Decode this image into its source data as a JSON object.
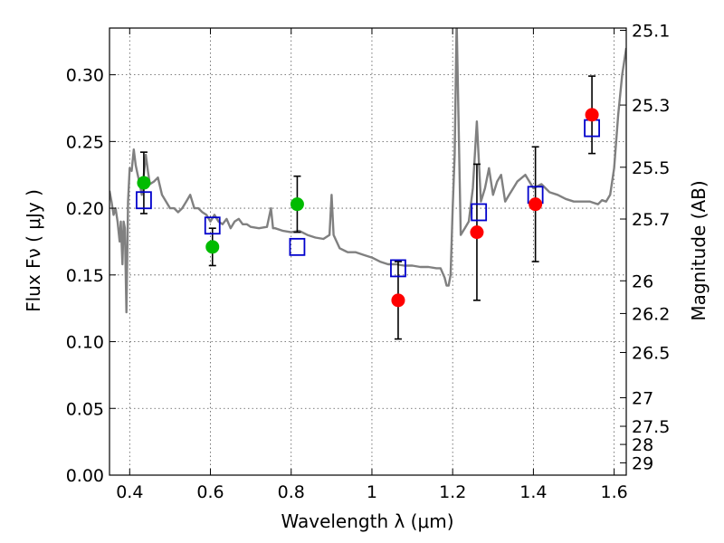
{
  "chart_data": {
    "type": "scatter",
    "xlabel": "Wavelength  λ (μm)",
    "ylabel": "Flux  Fν  ( μJy )",
    "ylabel_right": "Magnitude (AB)",
    "xlim": [
      0.35,
      1.63
    ],
    "ylim": [
      0.0,
      0.335
    ],
    "grid": true,
    "x_ticks": [
      0.4,
      0.6,
      0.8,
      1.0,
      1.2,
      1.4,
      1.6
    ],
    "x_tick_labels": [
      "0.4",
      "0.6",
      "0.8",
      "1",
      "1.2",
      "1.4",
      "1.6"
    ],
    "y_ticks": [
      0.0,
      0.05,
      0.1,
      0.15,
      0.2,
      0.25,
      0.3
    ],
    "y_tick_labels": [
      "0.00",
      "0.05",
      "0.10",
      "0.15",
      "0.20",
      "0.25",
      "0.30"
    ],
    "right_ticks": [
      {
        "label": "25.1",
        "flux": 0.3333
      },
      {
        "label": "25.3",
        "flux": 0.2773
      },
      {
        "label": "25.5",
        "flux": 0.2307
      },
      {
        "label": "25.7",
        "flux": 0.1919
      },
      {
        "label": "26",
        "flux": 0.1456
      },
      {
        "label": "26.2",
        "flux": 0.1211
      },
      {
        "label": "26.5",
        "flux": 0.0919
      },
      {
        "label": "27",
        "flux": 0.058
      },
      {
        "label": "27.5",
        "flux": 0.0366
      },
      {
        "label": "28",
        "flux": 0.023
      },
      {
        "label": "29",
        "flux": 0.0092
      }
    ],
    "series": [
      {
        "kind": "spectrum",
        "color": "#808080",
        "x": [
          0.35,
          0.355,
          0.36,
          0.365,
          0.37,
          0.375,
          0.378,
          0.382,
          0.385,
          0.388,
          0.392,
          0.396,
          0.4,
          0.405,
          0.41,
          0.415,
          0.42,
          0.425,
          0.43,
          0.435,
          0.44,
          0.445,
          0.45,
          0.46,
          0.47,
          0.48,
          0.49,
          0.5,
          0.51,
          0.52,
          0.53,
          0.54,
          0.55,
          0.56,
          0.57,
          0.58,
          0.59,
          0.6,
          0.61,
          0.62,
          0.63,
          0.64,
          0.65,
          0.66,
          0.67,
          0.68,
          0.69,
          0.7,
          0.72,
          0.74,
          0.75,
          0.755,
          0.76,
          0.78,
          0.8,
          0.82,
          0.84,
          0.86,
          0.88,
          0.895,
          0.9,
          0.905,
          0.92,
          0.94,
          0.96,
          0.98,
          1.0,
          1.02,
          1.04,
          1.06,
          1.08,
          1.1,
          1.12,
          1.14,
          1.16,
          1.17,
          1.18,
          1.185,
          1.19,
          1.195,
          1.2,
          1.205,
          1.21,
          1.22,
          1.23,
          1.24,
          1.25,
          1.26,
          1.27,
          1.28,
          1.29,
          1.3,
          1.31,
          1.32,
          1.33,
          1.34,
          1.35,
          1.36,
          1.38,
          1.4,
          1.42,
          1.44,
          1.46,
          1.48,
          1.5,
          1.52,
          1.54,
          1.55,
          1.56,
          1.57,
          1.58,
          1.59,
          1.6,
          1.61,
          1.62,
          1.63
        ],
        "y": [
          0.213,
          0.205,
          0.195,
          0.2,
          0.19,
          0.175,
          0.19,
          0.158,
          0.19,
          0.185,
          0.122,
          0.205,
          0.23,
          0.228,
          0.244,
          0.232,
          0.225,
          0.218,
          0.21,
          0.225,
          0.24,
          0.228,
          0.218,
          0.22,
          0.223,
          0.21,
          0.205,
          0.2,
          0.2,
          0.197,
          0.2,
          0.205,
          0.21,
          0.2,
          0.2,
          0.197,
          0.195,
          0.19,
          0.195,
          0.19,
          0.188,
          0.192,
          0.185,
          0.19,
          0.192,
          0.188,
          0.188,
          0.186,
          0.185,
          0.186,
          0.2,
          0.185,
          0.185,
          0.183,
          0.182,
          0.183,
          0.18,
          0.178,
          0.177,
          0.18,
          0.21,
          0.18,
          0.17,
          0.167,
          0.167,
          0.165,
          0.163,
          0.16,
          0.158,
          0.158,
          0.157,
          0.157,
          0.156,
          0.156,
          0.155,
          0.155,
          0.148,
          0.142,
          0.142,
          0.15,
          0.2,
          0.24,
          0.34,
          0.18,
          0.185,
          0.19,
          0.215,
          0.265,
          0.205,
          0.215,
          0.23,
          0.21,
          0.22,
          0.225,
          0.205,
          0.21,
          0.215,
          0.22,
          0.225,
          0.215,
          0.218,
          0.212,
          0.21,
          0.207,
          0.205,
          0.205,
          0.205,
          0.204,
          0.203,
          0.206,
          0.205,
          0.21,
          0.23,
          0.27,
          0.3,
          0.32
        ]
      },
      {
        "kind": "model-boxes",
        "color": "#0000cc",
        "x": [
          0.435,
          0.605,
          0.815,
          1.065,
          1.265,
          1.405,
          1.545
        ],
        "y": [
          0.206,
          0.187,
          0.171,
          0.155,
          0.197,
          0.21,
          0.26
        ]
      },
      {
        "kind": "points-green",
        "color": "#00bb00",
        "x": [
          0.435,
          0.605,
          0.815
        ],
        "y": [
          0.219,
          0.171,
          0.203
        ],
        "yerr": [
          0.023,
          0.014,
          0.021
        ]
      },
      {
        "kind": "points-red",
        "color": "#ff0000",
        "x": [
          1.065,
          1.26,
          1.405,
          1.545
        ],
        "y": [
          0.131,
          0.182,
          0.203,
          0.27
        ],
        "yerr": [
          0.029,
          0.051,
          0.043,
          0.029
        ]
      }
    ]
  }
}
